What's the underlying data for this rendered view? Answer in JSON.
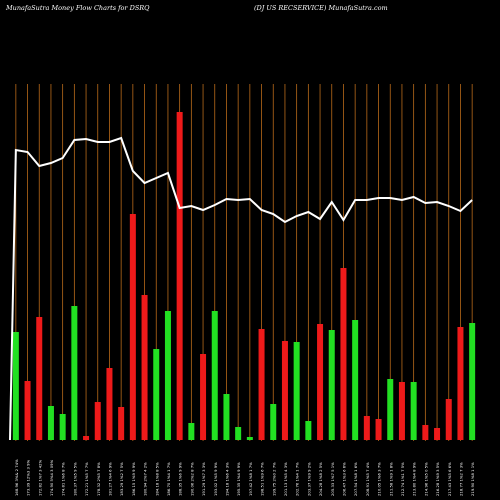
{
  "header": {
    "left": "MunafaSutra  Money Flow  Charts for DSRQ",
    "right": "(DJ US RECSERVICE) MunafaSutra.com"
  },
  "colors": {
    "background": "#000000",
    "grid": "#b86a1a",
    "up": "#22e022",
    "down": "#ee1a1a",
    "line": "#ffffff",
    "text": "#ffffff"
  },
  "chart_data": {
    "type": "bar",
    "title": "",
    "grid": true,
    "bars": [
      {
        "value": 108,
        "color": "up"
      },
      {
        "value": 59,
        "color": "down"
      },
      {
        "value": 123,
        "color": "down"
      },
      {
        "value": 34,
        "color": "up"
      },
      {
        "value": 26,
        "color": "up"
      },
      {
        "value": 134,
        "color": "up"
      },
      {
        "value": 4,
        "color": "down"
      },
      {
        "value": 38,
        "color": "down"
      },
      {
        "value": 72,
        "color": "down"
      },
      {
        "value": 33,
        "color": "down"
      },
      {
        "value": 226,
        "color": "down"
      },
      {
        "value": 145,
        "color": "down"
      },
      {
        "value": 91,
        "color": "up"
      },
      {
        "value": 129,
        "color": "up"
      },
      {
        "value": 328,
        "color": "down"
      },
      {
        "value": 17,
        "color": "up"
      },
      {
        "value": 86,
        "color": "down"
      },
      {
        "value": 129,
        "color": "up"
      },
      {
        "value": 46,
        "color": "up"
      },
      {
        "value": 13,
        "color": "up"
      },
      {
        "value": 3,
        "color": "up"
      },
      {
        "value": 111,
        "color": "down"
      },
      {
        "value": 36,
        "color": "up"
      },
      {
        "value": 99,
        "color": "down"
      },
      {
        "value": 98,
        "color": "up"
      },
      {
        "value": 19,
        "color": "up"
      },
      {
        "value": 116,
        "color": "down"
      },
      {
        "value": 110,
        "color": "up"
      },
      {
        "value": 172,
        "color": "down"
      },
      {
        "value": 120,
        "color": "up"
      },
      {
        "value": 24,
        "color": "down"
      },
      {
        "value": 21,
        "color": "down"
      },
      {
        "value": 61,
        "color": "up"
      },
      {
        "value": 58,
        "color": "down"
      },
      {
        "value": 58,
        "color": "up"
      },
      {
        "value": 15,
        "color": "down"
      },
      {
        "value": 12,
        "color": "down"
      },
      {
        "value": 41,
        "color": "down"
      },
      {
        "value": 113,
        "color": "down"
      },
      {
        "value": 117,
        "color": "up"
      }
    ],
    "line": [
      290,
      288,
      274,
      277,
      282,
      300,
      301,
      298,
      298,
      302,
      269,
      257,
      262,
      267,
      232,
      234,
      230,
      235,
      241,
      240,
      241,
      230,
      226,
      218,
      224,
      228,
      221,
      238,
      220,
      240,
      240,
      242,
      242,
      240,
      243,
      237,
      238,
      234,
      229,
      240
    ]
  },
  "x_labels": [
    "168.96 3%& 2 74%",
    "173.39 12%3 3 9%",
    "172.82 1%7 3 42%",
    "174.90 5%4 3 09%",
    "174.81 1%6 8 7%",
    "180.37 1%5 9 5%",
    "172.21 1%5 7 7%",
    "178.32 2%5 7 8%",
    "181.27 1%4 6 9%",
    "183.29 1%2 7 5%",
    "186.15 1%9 9 9%",
    "180.94 2%7 4 2%",
    "184.18 1%8 8 5%",
    "186.70 1%4 1 7%",
    "188.35 1%6 9 9%",
    "190.06 2%2 8 7%",
    "191.29 1%7 3 3%",
    "193.02 1%5 9 9%",
    "194.18 1%6 4 3%",
    "195.35 1%4 9 9%",
    "197.42 1%8 1 7%",
    "198.51 1%9 6 7%",
    "199.75 2%0 2 7%",
    "201.13 1%5 4 3%",
    "202.76 1%4 1 7%",
    "203.37 1%9 9 2%",
    "204.28 1%8 2 5%",
    "205.33 1%7 5 1%",
    "206.47 1%3 6 6%",
    "207.54 1%8 1 6%",
    "208.91 1%5 7 4%",
    "210.05 1%6 3 7%",
    "211.58 1%9 1 8%",
    "212.74 1%1 7 5%",
    "213.80 1%4 8 9%",
    "214.96 1%5 0 5%",
    "216.28 1%9 3 5%",
    "217.43 1%5 6 6%",
    "218.77 1%2 7 3%",
    "219.90 1%8 1 1%"
  ]
}
